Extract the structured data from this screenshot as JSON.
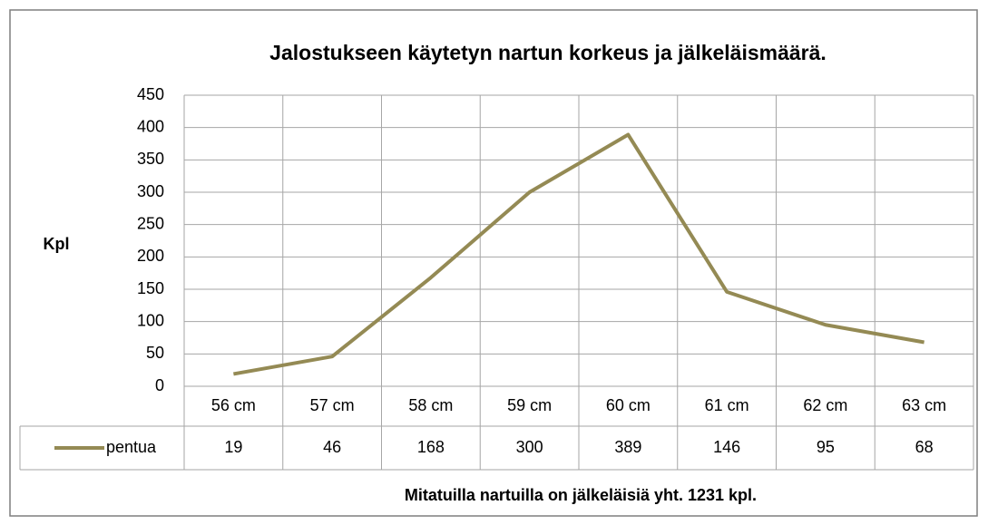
{
  "chart_data": {
    "type": "line",
    "title": "Jalostukseen käytetyn nartun korkeus ja jälkeläismäärä.",
    "y_label": "Kpl",
    "x_label": "Mitatuilla nartuilla on jälkeläisiä yht. 1231 kpl.",
    "categories": [
      "56 cm",
      "57 cm",
      "58 cm",
      "59 cm",
      "60 cm",
      "61 cm",
      "62 cm",
      "63 cm"
    ],
    "series": [
      {
        "name": "pentua",
        "color": "#948a54",
        "values": [
          19,
          46,
          168,
          300,
          389,
          146,
          95,
          68
        ]
      }
    ],
    "ylim": [
      0,
      450
    ],
    "yticks": [
      0,
      50,
      100,
      150,
      200,
      250,
      300,
      350,
      400,
      450
    ],
    "grid": true
  }
}
